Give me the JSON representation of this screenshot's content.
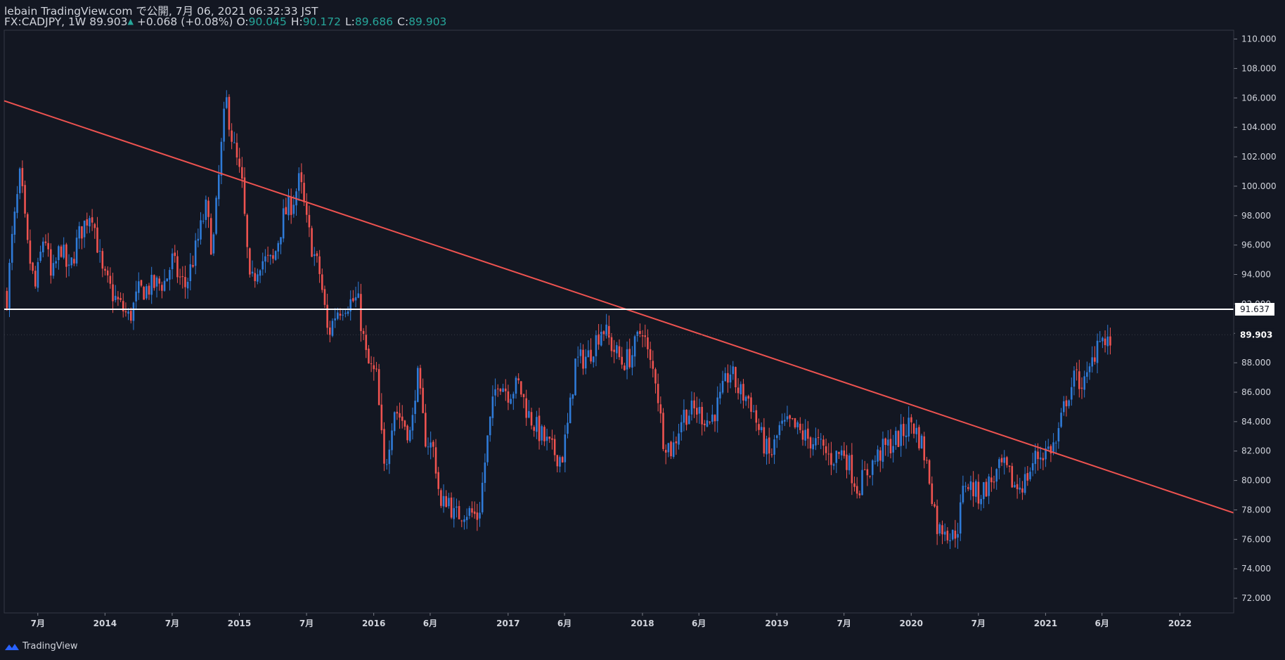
{
  "header": {
    "line1": "lebain TradingView.com で公開, 7月 06, 2021 06:32:33 JST",
    "symbol": "FX:CADJPY, 1W",
    "last": "89.903",
    "change": "+0.068 (+0.08%)",
    "open_label": "O:",
    "open": "90.045",
    "high_label": "H:",
    "high": "90.172",
    "low_label": "L:",
    "low": "89.686",
    "close_label": "C:",
    "close": "89.903"
  },
  "footer": {
    "brand": "TradingView"
  },
  "colors": {
    "background": "#131722",
    "up": "#2f7bd8",
    "down": "#ef5350",
    "trendline": "#ef5350",
    "level_line": "#ffffff",
    "ohlc_value": "#26a69a"
  },
  "chart_data": {
    "type": "candlestick",
    "interval": "1W",
    "symbol": "FX:CADJPY",
    "y_axis": {
      "range": [
        71.0,
        110.6
      ],
      "ticks": [
        "110.000",
        "108.000",
        "106.000",
        "104.000",
        "102.000",
        "100.000",
        "98.000",
        "96.000",
        "94.000",
        "92.000",
        "90.000",
        "88.000",
        "86.000",
        "84.000",
        "82.000",
        "80.000",
        "78.000",
        "76.000",
        "74.000",
        "72.000"
      ],
      "tick_values": [
        110,
        108,
        106,
        104,
        102,
        100,
        98,
        96,
        94,
        92,
        90,
        88,
        86,
        84,
        82,
        80,
        78,
        76,
        74,
        72
      ]
    },
    "x_axis": {
      "range": [
        2013.25,
        2022.4
      ],
      "ticks": [
        {
          "label": "7月",
          "t": 2013.5
        },
        {
          "label": "2014",
          "t": 2014.0
        },
        {
          "label": "7月",
          "t": 2014.5
        },
        {
          "label": "2015",
          "t": 2015.0
        },
        {
          "label": "7月",
          "t": 2015.5
        },
        {
          "label": "2016",
          "t": 2016.0
        },
        {
          "label": "6月",
          "t": 2016.42
        },
        {
          "label": "2017",
          "t": 2017.0
        },
        {
          "label": "6月",
          "t": 2017.42
        },
        {
          "label": "2018",
          "t": 2018.0
        },
        {
          "label": "6月",
          "t": 2018.42
        },
        {
          "label": "2019",
          "t": 2019.0
        },
        {
          "label": "7月",
          "t": 2019.5
        },
        {
          "label": "2020",
          "t": 2020.0
        },
        {
          "label": "7月",
          "t": 2020.5
        },
        {
          "label": "2021",
          "t": 2021.0
        },
        {
          "label": "6月",
          "t": 2021.42
        },
        {
          "label": "2022",
          "t": 2022.0
        }
      ]
    },
    "close_path": [
      [
        2013.27,
        92.5
      ],
      [
        2013.31,
        96.5
      ],
      [
        2013.37,
        100.8
      ],
      [
        2013.42,
        96.0
      ],
      [
        2013.48,
        93.0
      ],
      [
        2013.55,
        97.0
      ],
      [
        2013.6,
        93.5
      ],
      [
        2013.67,
        96.0
      ],
      [
        2013.73,
        94.0
      ],
      [
        2013.8,
        96.5
      ],
      [
        2013.9,
        98.5
      ],
      [
        2013.98,
        94.0
      ],
      [
        2014.08,
        92.3
      ],
      [
        2014.18,
        91.0
      ],
      [
        2014.25,
        92.8
      ],
      [
        2014.35,
        93.2
      ],
      [
        2014.45,
        93.5
      ],
      [
        2014.5,
        95.0
      ],
      [
        2014.55,
        93.8
      ],
      [
        2014.6,
        93.2
      ],
      [
        2014.67,
        95.5
      ],
      [
        2014.75,
        98.5
      ],
      [
        2014.8,
        95.5
      ],
      [
        2014.86,
        102.0
      ],
      [
        2014.9,
        106.0
      ],
      [
        2014.95,
        103.0
      ],
      [
        2015.02,
        100.0
      ],
      [
        2015.08,
        93.0
      ],
      [
        2015.15,
        95.0
      ],
      [
        2015.25,
        94.8
      ],
      [
        2015.33,
        98.0
      ],
      [
        2015.4,
        99.0
      ],
      [
        2015.45,
        100.5
      ],
      [
        2015.5,
        97.5
      ],
      [
        2015.55,
        95.5
      ],
      [
        2015.6,
        94.0
      ],
      [
        2015.63,
        92.0
      ],
      [
        2015.66,
        89.8
      ],
      [
        2015.72,
        91.5
      ],
      [
        2015.78,
        92.0
      ],
      [
        2015.88,
        92.3
      ],
      [
        2015.95,
        88.0
      ],
      [
        2016.02,
        87.0
      ],
      [
        2016.08,
        80.5
      ],
      [
        2016.15,
        85.0
      ],
      [
        2016.22,
        84.0
      ],
      [
        2016.28,
        83.0
      ],
      [
        2016.32,
        87.5
      ],
      [
        2016.38,
        83.0
      ],
      [
        2016.45,
        82.0
      ],
      [
        2016.5,
        78.0
      ],
      [
        2016.55,
        79.0
      ],
      [
        2016.6,
        77.5
      ],
      [
        2016.68,
        78.0
      ],
      [
        2016.78,
        77.5
      ],
      [
        2016.85,
        83.0
      ],
      [
        2016.92,
        87.0
      ],
      [
        2017.0,
        86.0
      ],
      [
        2017.08,
        86.5
      ],
      [
        2017.15,
        84.5
      ],
      [
        2017.25,
        83.0
      ],
      [
        2017.33,
        82.0
      ],
      [
        2017.4,
        81.5
      ],
      [
        2017.45,
        84.0
      ],
      [
        2017.5,
        88.0
      ],
      [
        2017.6,
        88.5
      ],
      [
        2017.7,
        90.5
      ],
      [
        2017.78,
        89.0
      ],
      [
        2017.85,
        88.0
      ],
      [
        2017.92,
        88.5
      ],
      [
        2018.0,
        90.5
      ],
      [
        2018.05,
        88.0
      ],
      [
        2018.1,
        87.0
      ],
      [
        2018.15,
        83.0
      ],
      [
        2018.22,
        82.0
      ],
      [
        2018.3,
        84.5
      ],
      [
        2018.4,
        84.8
      ],
      [
        2018.5,
        84.0
      ],
      [
        2018.58,
        85.5
      ],
      [
        2018.65,
        87.5
      ],
      [
        2018.72,
        86.0
      ],
      [
        2018.8,
        85.5
      ],
      [
        2018.88,
        83.0
      ],
      [
        2018.95,
        81.5
      ],
      [
        2019.02,
        83.5
      ],
      [
        2019.1,
        83.8
      ],
      [
        2019.2,
        83.0
      ],
      [
        2019.3,
        82.5
      ],
      [
        2019.4,
        81.5
      ],
      [
        2019.5,
        82.0
      ],
      [
        2019.6,
        79.5
      ],
      [
        2019.7,
        81.0
      ],
      [
        2019.78,
        82.0
      ],
      [
        2019.85,
        82.5
      ],
      [
        2019.92,
        83.0
      ],
      [
        2020.0,
        84.0
      ],
      [
        2020.08,
        82.5
      ],
      [
        2020.14,
        80.0
      ],
      [
        2020.2,
        76.5
      ],
      [
        2020.25,
        77.0
      ],
      [
        2020.3,
        76.0
      ],
      [
        2020.35,
        77.0
      ],
      [
        2020.4,
        80.0
      ],
      [
        2020.5,
        79.0
      ],
      [
        2020.6,
        80.0
      ],
      [
        2020.68,
        81.0
      ],
      [
        2020.78,
        79.5
      ],
      [
        2020.85,
        80.0
      ],
      [
        2020.92,
        81.5
      ],
      [
        2021.0,
        82.0
      ],
      [
        2021.08,
        82.5
      ],
      [
        2021.15,
        85.5
      ],
      [
        2021.22,
        87.0
      ],
      [
        2021.3,
        86.5
      ],
      [
        2021.36,
        88.5
      ],
      [
        2021.4,
        90.2
      ],
      [
        2021.45,
        89.0
      ],
      [
        2021.5,
        89.9
      ]
    ],
    "last_price": 89.903,
    "last_price_label": "89.903",
    "horizontal_line": {
      "value": 91.637,
      "label": "91.637"
    },
    "trendline": {
      "from": [
        2013.25,
        105.8
      ],
      "to": [
        2022.4,
        77.8
      ]
    }
  }
}
